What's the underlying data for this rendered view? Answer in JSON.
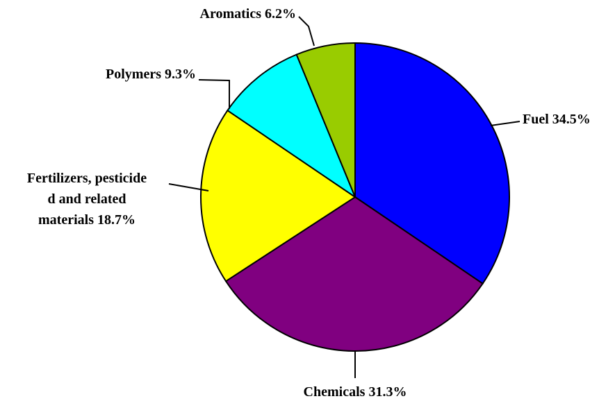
{
  "chart_data": {
    "type": "pie",
    "categories": [
      "Fuel",
      "Chemicals",
      "Fertilizers, pesticide\nd and related\nmaterials",
      "Polymers",
      "Aromatics"
    ],
    "values": [
      34.5,
      31.3,
      18.7,
      9.3,
      6.2
    ],
    "value_labels": [
      "34.5%",
      "31.3%",
      "18.7%",
      "9.3%",
      "6.2%"
    ],
    "colors": [
      "#0000ff",
      "#800080",
      "#ffff00",
      "#00ffff",
      "#99cc00"
    ]
  }
}
